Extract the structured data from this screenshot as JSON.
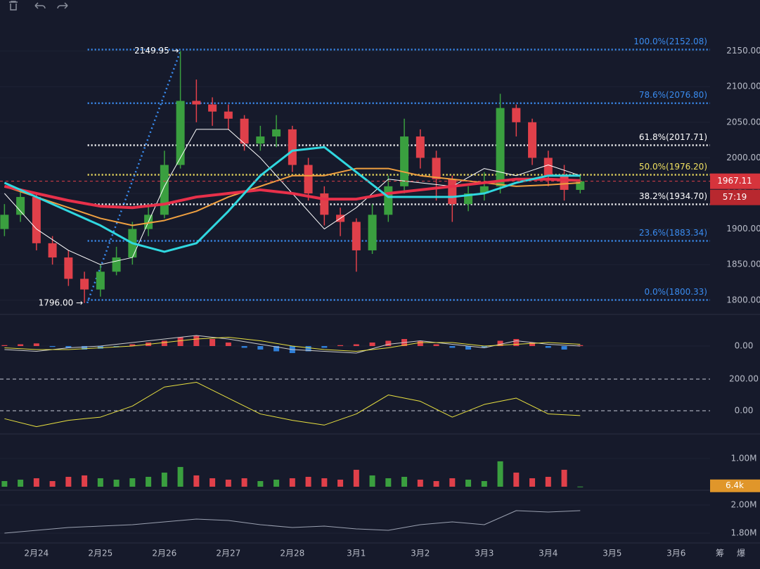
{
  "chart_data": [
    {
      "type": "candlestick",
      "xlim": [
        -0.57,
        10.53
      ],
      "xticks": [
        {
          "value": 0,
          "label": "2月24"
        },
        {
          "value": 1,
          "label": "2月25"
        },
        {
          "value": 2,
          "label": "2月26"
        },
        {
          "value": 3,
          "label": "2月27"
        },
        {
          "value": 4,
          "label": "2月28"
        },
        {
          "value": 5,
          "label": "3月1"
        },
        {
          "value": 6,
          "label": "3月2"
        },
        {
          "value": 7,
          "label": "3月3"
        },
        {
          "value": 8,
          "label": "3月4"
        },
        {
          "value": 9,
          "label": "3月5"
        },
        {
          "value": 10,
          "label": "3月6"
        }
      ],
      "ylim": [
        1782,
        2202
      ],
      "yticks": [
        {
          "value": 1800,
          "label": "1800.00"
        },
        {
          "value": 1850,
          "label": "1850.00"
        },
        {
          "value": 1900,
          "label": "1900.00"
        },
        {
          "value": 1950,
          "label": "1950.00"
        },
        {
          "value": 2000,
          "label": "2000.00"
        },
        {
          "value": 2050,
          "label": "2050.00"
        },
        {
          "value": 2100,
          "label": "2100.00"
        },
        {
          "value": 2150,
          "label": "2150.00"
        }
      ],
      "up_color": "#3a9f3f",
      "down_color": "#e0404a",
      "x": [
        -0.5,
        -0.25,
        0,
        0.25,
        0.5,
        0.75,
        1,
        1.25,
        1.5,
        1.75,
        2,
        2.25,
        2.5,
        2.75,
        3,
        3.25,
        3.5,
        3.75,
        4,
        4.25,
        4.5,
        4.75,
        5,
        5.25,
        5.5,
        5.75,
        6,
        6.25,
        6.5,
        6.75,
        7,
        7.25,
        7.5,
        7.75,
        8,
        8.25,
        8.5
      ],
      "open": [
        1900,
        1920,
        1945,
        1880,
        1860,
        1830,
        1815,
        1840,
        1860,
        1900,
        1920,
        1990,
        2080,
        2075,
        2065,
        2055,
        2020,
        2030,
        2040,
        1990,
        1950,
        1920,
        1910,
        1870,
        1920,
        1960,
        2030,
        2000,
        1970,
        1935,
        1950,
        1960,
        2070,
        2050,
        2000,
        1975,
        1955
      ],
      "high": [
        1935,
        1955,
        1950,
        1890,
        1870,
        1840,
        1850,
        1875,
        1910,
        1935,
        2010,
        2149.95,
        2110,
        2085,
        2075,
        2060,
        2045,
        2060,
        2045,
        2000,
        1960,
        1930,
        1915,
        1935,
        1975,
        2055,
        2040,
        2010,
        1975,
        1960,
        1980,
        2090,
        2075,
        2055,
        2010,
        1990,
        1975
      ],
      "low": [
        1890,
        1910,
        1870,
        1850,
        1820,
        1796.0,
        1805,
        1835,
        1850,
        1890,
        1915,
        1985,
        2050,
        2045,
        2040,
        2010,
        2010,
        2015,
        1980,
        1940,
        1905,
        1890,
        1840,
        1865,
        1910,
        1950,
        1985,
        1940,
        1910,
        1925,
        1940,
        1950,
        2030,
        1990,
        1960,
        1940,
        1950
      ],
      "close": [
        1920,
        1945,
        1880,
        1860,
        1830,
        1815,
        1840,
        1860,
        1900,
        1920,
        1990,
        2080,
        2075,
        2065,
        2055,
        2020,
        2030,
        2040,
        1990,
        1950,
        1920,
        1910,
        1870,
        1920,
        1960,
        2030,
        2000,
        1970,
        1935,
        1950,
        1960,
        2070,
        2050,
        2000,
        1975,
        1955,
        1967.11
      ],
      "series": [
        {
          "color": "#ffffff",
          "width": 1,
          "x": [
            -0.5,
            0,
            0.5,
            1,
            1.5,
            2,
            2.5,
            3,
            3.5,
            4,
            4.5,
            5,
            5.5,
            6,
            6.5,
            7,
            7.5,
            8,
            8.5
          ],
          "values": [
            1950,
            1900,
            1870,
            1850,
            1860,
            1960,
            2040,
            2040,
            2000,
            1950,
            1900,
            1930,
            1970,
            1965,
            1960,
            1985,
            1975,
            1990,
            1975
          ]
        },
        {
          "color": "#f0a040",
          "width": 2,
          "x": [
            -0.5,
            0,
            0.5,
            1,
            1.5,
            2,
            2.5,
            3,
            3.5,
            4,
            4.5,
            5,
            5.5,
            6,
            6.5,
            7,
            7.5,
            8,
            8.5
          ],
          "values": [
            1960,
            1945,
            1930,
            1915,
            1905,
            1912,
            1925,
            1945,
            1960,
            1975,
            1975,
            1985,
            1985,
            1975,
            1970,
            1965,
            1960,
            1962,
            1965
          ]
        },
        {
          "color": "#e8304a",
          "width": 4,
          "x": [
            -0.5,
            0,
            0.5,
            1,
            1.5,
            2,
            2.5,
            3,
            3.5,
            4,
            4.5,
            5,
            5.5,
            6,
            6.5,
            7,
            7.5,
            8,
            8.5
          ],
          "values": [
            1960,
            1950,
            1940,
            1932,
            1930,
            1935,
            1945,
            1950,
            1955,
            1950,
            1942,
            1942,
            1950,
            1955,
            1960,
            1965,
            1970,
            1970,
            1968
          ]
        },
        {
          "color": "#30d8e0",
          "width": 3,
          "x": [
            -0.5,
            0,
            0.5,
            1,
            1.5,
            2,
            2.5,
            3,
            3.5,
            4,
            4.5,
            5,
            5.5,
            6,
            6.5,
            7,
            7.5,
            8,
            8.5
          ],
          "values": [
            1965,
            1945,
            1925,
            1905,
            1880,
            1868,
            1880,
            1925,
            1975,
            2010,
            2015,
            1980,
            1945,
            1945,
            1945,
            1950,
            1965,
            1975,
            1975
          ]
        }
      ],
      "fib_start": 0.8,
      "fib_levels": [
        {
          "label": "100.0%(2152.08)",
          "value": 2152.08,
          "color": "#3a8cf0"
        },
        {
          "label": "78.6%(2076.80)",
          "value": 2076.8,
          "color": "#3a8cf0"
        },
        {
          "label": "61.8%(2017.71)",
          "value": 2017.71,
          "color": "#ffffff"
        },
        {
          "label": "50.0%(1976.20)",
          "value": 1976.2,
          "color": "#f0e060"
        },
        {
          "label": "38.2%(1934.70)",
          "value": 1934.7,
          "color": "#ffffff"
        },
        {
          "label": "23.6%(1883.34)",
          "value": 1883.34,
          "color": "#3a8cf0"
        },
        {
          "label": "0.0%(1800.33)",
          "value": 1800.33,
          "color": "#3a8cf0"
        }
      ],
      "annotations": [
        {
          "text": "2149.95 →",
          "x": 2.25,
          "value": 2149.95
        },
        {
          "text": "1796.00 →",
          "x": 0.75,
          "value": 1796.0
        }
      ],
      "current_price": 1967.11,
      "countdown": "57:19"
    },
    {
      "type": "bar",
      "ylim": [
        -12,
        12
      ],
      "yticks": [
        {
          "value": 0,
          "label": "0.00"
        }
      ],
      "pos_color": "#e0404a",
      "neg_color": "#2f7fd8",
      "x": [
        -0.5,
        -0.25,
        0,
        0.25,
        0.5,
        0.75,
        1,
        1.25,
        1.5,
        1.75,
        2,
        2.25,
        2.5,
        2.75,
        3,
        3.25,
        3.5,
        3.75,
        4,
        4.25,
        4.5,
        4.75,
        5,
        5.25,
        5.5,
        5.75,
        6,
        6.25,
        6.5,
        6.75,
        7,
        7.25,
        7.5,
        7.75,
        8,
        8.25,
        8.5
      ],
      "values": [
        0.5,
        1,
        1.5,
        -0.5,
        -1,
        -2,
        -1.5,
        -0.5,
        1,
        2,
        3,
        5,
        6,
        4,
        2,
        -1,
        -2,
        -3,
        -4,
        -3,
        -1,
        0.5,
        1,
        2,
        3,
        4,
        3,
        1,
        -1,
        -2,
        -1,
        3,
        4,
        2,
        -1,
        -2,
        0.5
      ],
      "series": [
        {
          "color": "#cccccc",
          "width": 1,
          "x": [
            -0.5,
            0,
            0.5,
            1,
            1.5,
            2,
            2.5,
            3,
            3.5,
            4,
            4.5,
            5,
            5.5,
            6,
            6.5,
            7,
            7.5,
            8,
            8.5
          ],
          "values": [
            -2,
            -3,
            -1,
            0,
            2,
            4,
            6,
            4,
            1,
            -2,
            -3,
            -4,
            1,
            3,
            1,
            -1,
            3,
            1,
            0
          ]
        },
        {
          "color": "#e8e040",
          "width": 1,
          "x": [
            -0.5,
            0,
            0.5,
            1,
            1.5,
            2,
            2.5,
            3,
            3.5,
            4,
            4.5,
            5,
            5.5,
            6,
            6.5,
            7,
            7.5,
            8,
            8.5
          ],
          "values": [
            -1,
            -2,
            -2,
            -1,
            0,
            2,
            4,
            5,
            3,
            0,
            -2,
            -3,
            -1,
            2,
            2,
            0,
            1,
            2,
            1
          ]
        }
      ]
    },
    {
      "type": "line",
      "ylim": [
        -124,
        262
      ],
      "yticks": [
        {
          "value": 0,
          "label": "0.00"
        },
        {
          "value": 200,
          "label": "200.00"
        }
      ],
      "series": [
        {
          "color": "#e8e040",
          "width": 1,
          "x": [
            -0.5,
            0,
            0.5,
            1,
            1.5,
            2,
            2.5,
            3,
            3.5,
            4,
            4.5,
            5,
            5.5,
            6,
            6.5,
            7,
            7.5,
            8,
            8.5
          ],
          "values": [
            -50,
            -100,
            -60,
            -40,
            30,
            150,
            180,
            80,
            -20,
            -60,
            -90,
            -20,
            100,
            60,
            -40,
            40,
            80,
            -20,
            -30
          ]
        }
      ]
    },
    {
      "type": "bar",
      "ylim": [
        0,
        1670000
      ],
      "yticks": [
        {
          "value": 1000000,
          "label": "1.00M"
        }
      ],
      "x": [
        -0.5,
        -0.25,
        0,
        0.25,
        0.5,
        0.75,
        1,
        1.25,
        1.5,
        1.75,
        2,
        2.25,
        2.5,
        2.75,
        3,
        3.25,
        3.5,
        3.75,
        4,
        4.25,
        4.5,
        4.75,
        5,
        5.25,
        5.5,
        5.75,
        6,
        6.25,
        6.5,
        6.75,
        7,
        7.25,
        7.5,
        7.75,
        8,
        8.25,
        8.5
      ],
      "values": [
        200000,
        250000,
        300000,
        200000,
        350000,
        400000,
        300000,
        250000,
        300000,
        350000,
        500000,
        700000,
        400000,
        300000,
        250000,
        300000,
        200000,
        250000,
        300000,
        350000,
        300000,
        250000,
        600000,
        400000,
        300000,
        350000,
        250000,
        200000,
        300000,
        250000,
        200000,
        900000,
        500000,
        300000,
        350000,
        600000,
        6400
      ],
      "volume_tag": "6.4k"
    },
    {
      "type": "line",
      "ylim": [
        1740000,
        2090000
      ],
      "yticks": [
        {
          "value": 1800000,
          "label": "1.80M"
        },
        {
          "value": 2000000,
          "label": "2.00M"
        }
      ],
      "series": [
        {
          "color": "#9aa0b0",
          "width": 1,
          "x": [
            -0.5,
            0,
            0.5,
            1,
            1.5,
            2,
            2.5,
            3,
            3.5,
            4,
            4.5,
            5,
            5.5,
            6,
            6.5,
            7,
            7.5,
            8,
            8.5
          ],
          "values": [
            1800000,
            1820000,
            1840000,
            1850000,
            1860000,
            1880000,
            1900000,
            1890000,
            1860000,
            1840000,
            1850000,
            1830000,
            1820000,
            1860000,
            1880000,
            1860000,
            1960000,
            1950000,
            1960000
          ]
        }
      ]
    }
  ],
  "footer": {
    "left": "筹",
    "right": "爆"
  }
}
